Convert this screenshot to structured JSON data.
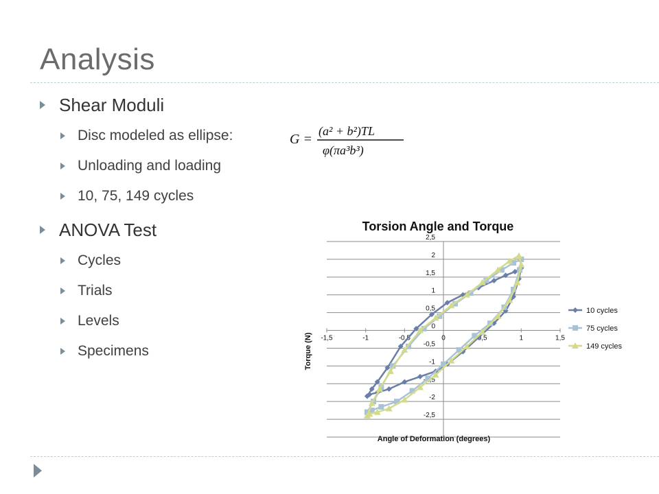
{
  "slide": {
    "title": "Analysis"
  },
  "bullets": [
    {
      "label": "Shear Moduli",
      "children": [
        "Disc modeled as ellipse:",
        "Unloading and loading",
        "10, 75, 149 cycles"
      ]
    },
    {
      "label": "ANOVA Test",
      "children": [
        "Cycles",
        "Trials",
        "Levels",
        "Specimens"
      ]
    }
  ],
  "formula": {
    "lhs": "G =",
    "numerator": "(a² + b²)TL",
    "denominator": "φ(πa³b³)"
  },
  "chart_data": {
    "type": "line",
    "title": "Torsion Angle and Torque",
    "xlabel": "Angle of Deformation (degrees)",
    "ylabel": "Torque (N)",
    "xlim": [
      -1.5,
      1.5
    ],
    "ylim": [
      -3,
      2.5
    ],
    "xticks": [
      "-1,5",
      "-1",
      "-0,5",
      "0",
      "0,5",
      "1",
      "1,5"
    ],
    "yticks": [
      "2,5",
      "2",
      "1,5",
      "1",
      "0,5",
      "0",
      "-0,5",
      "-1",
      "-1,5",
      "-2",
      "-2,5"
    ],
    "grid": true,
    "legend_position": "right",
    "colors": {
      "10 cycles": "#6b7ea8",
      "75 cycles": "#a9c3d6",
      "149 cycles": "#d4da8c"
    },
    "series": [
      {
        "name": "10 cycles",
        "marker": "diamond",
        "x": [
          -0.98,
          -0.92,
          -0.85,
          -0.72,
          -0.55,
          -0.35,
          -0.15,
          0.05,
          0.25,
          0.45,
          0.65,
          0.8,
          0.92,
          1.0,
          0.97,
          0.9,
          0.8,
          0.65,
          0.45,
          0.25,
          0.05,
          -0.1,
          -0.3,
          -0.5,
          -0.7,
          -0.85,
          -0.95,
          -0.98
        ],
        "y": [
          -1.85,
          -1.65,
          -1.45,
          -1.05,
          -0.45,
          0.05,
          0.45,
          0.78,
          1.0,
          1.2,
          1.4,
          1.55,
          1.65,
          1.75,
          1.45,
          0.95,
          0.55,
          0.2,
          -0.2,
          -0.6,
          -0.95,
          -1.15,
          -1.3,
          -1.45,
          -1.65,
          -1.75,
          -1.8,
          -1.85
        ]
      },
      {
        "name": "75 cycles",
        "marker": "square",
        "x": [
          -0.98,
          -0.9,
          -0.8,
          -0.65,
          -0.45,
          -0.25,
          -0.05,
          0.15,
          0.35,
          0.55,
          0.75,
          0.9,
          1.0,
          0.98,
          0.9,
          0.78,
          0.6,
          0.4,
          0.2,
          0.0,
          -0.2,
          -0.4,
          -0.6,
          -0.8,
          -0.92,
          -0.98
        ],
        "y": [
          -2.3,
          -2.0,
          -1.6,
          -1.0,
          -0.45,
          0.05,
          0.4,
          0.75,
          1.05,
          1.4,
          1.7,
          1.9,
          2.0,
          1.7,
          1.15,
          0.65,
          0.2,
          -0.15,
          -0.55,
          -0.95,
          -1.35,
          -1.7,
          -2.0,
          -2.15,
          -2.25,
          -2.3
        ]
      },
      {
        "name": "149 cycles",
        "marker": "triangle",
        "x": [
          -0.98,
          -0.92,
          -0.82,
          -0.68,
          -0.5,
          -0.3,
          -0.1,
          0.1,
          0.3,
          0.5,
          0.7,
          0.85,
          0.97,
          1.0,
          0.95,
          0.85,
          0.7,
          0.5,
          0.3,
          0.1,
          -0.1,
          -0.3,
          -0.5,
          -0.7,
          -0.85,
          -0.95,
          -0.98
        ],
        "y": [
          -2.4,
          -2.05,
          -1.65,
          -1.15,
          -0.55,
          0.0,
          0.35,
          0.7,
          1.0,
          1.35,
          1.7,
          1.95,
          2.1,
          1.85,
          1.35,
          0.85,
          0.4,
          -0.05,
          -0.45,
          -0.85,
          -1.25,
          -1.6,
          -1.95,
          -2.2,
          -2.3,
          -2.35,
          -2.4
        ]
      }
    ]
  }
}
